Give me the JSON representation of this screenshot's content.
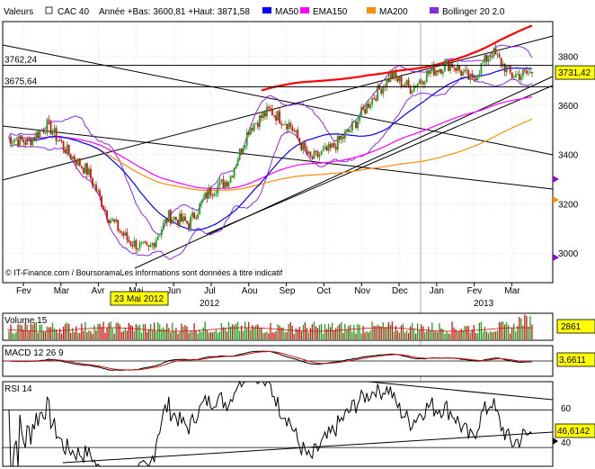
{
  "header": {
    "valeurs_label": "Valeurs",
    "instrument": "CAC 40",
    "year_stats": "Année +Bas: 3600,81 +Haut: 3871,58",
    "legend": [
      {
        "name": "MA50",
        "color": "#0000ff"
      },
      {
        "name": "EMA150",
        "color": "#ff00ff"
      },
      {
        "name": "MA200",
        "color": "#ff8c00"
      },
      {
        "name": "Bollinger 20 2.0",
        "color": "#8a2be2"
      }
    ]
  },
  "source_note": "© IT-Finance.com / BoursoramaLes informations sont données à titre indicatif",
  "date_highlight": "23 Mai 2012",
  "chart_data": [
    {
      "type": "candlestick",
      "name": "CAC 40",
      "ylim": [
        2880,
        3940
      ],
      "y_ticks": [
        3000,
        3200,
        3400,
        3600,
        3800
      ],
      "y_tick_labels": [
        "3000",
        "3200",
        "3400",
        "3600",
        "3800"
      ],
      "levels": [
        {
          "value": 3762.24,
          "label": "3762,24"
        },
        {
          "value": 3675.64,
          "label": "3675,64"
        }
      ],
      "last_value": 3731.42,
      "last_label": "3731,42",
      "months": [
        "Fev",
        "Mar",
        "Avr",
        "Mai",
        "Jun",
        "Jul",
        "Aou",
        "Sep",
        "Oct",
        "Nov",
        "Dec",
        "Jan",
        "Fev",
        "Mar"
      ],
      "years": [
        "2012",
        "2013"
      ],
      "close_anchors": [
        3470,
        3450,
        3520,
        3410,
        3330,
        3150,
        3050,
        3010,
        3150,
        3120,
        3250,
        3300,
        3510,
        3580,
        3520,
        3380,
        3420,
        3500,
        3620,
        3720,
        3670,
        3740,
        3770,
        3700,
        3820,
        3720,
        3731
      ],
      "grid": true
    },
    {
      "type": "bar",
      "name": "Volume",
      "title": "Volume 15",
      "last_label": "2861"
    },
    {
      "type": "line",
      "name": "MACD",
      "title": "MACD 12 26 9",
      "last_label": "3,6611"
    },
    {
      "type": "line",
      "name": "RSI",
      "title": "RSI 14",
      "y_ticks": [
        40,
        60
      ],
      "y_tick_labels": [
        "40",
        "60"
      ],
      "last_label": "46,6142"
    }
  ]
}
